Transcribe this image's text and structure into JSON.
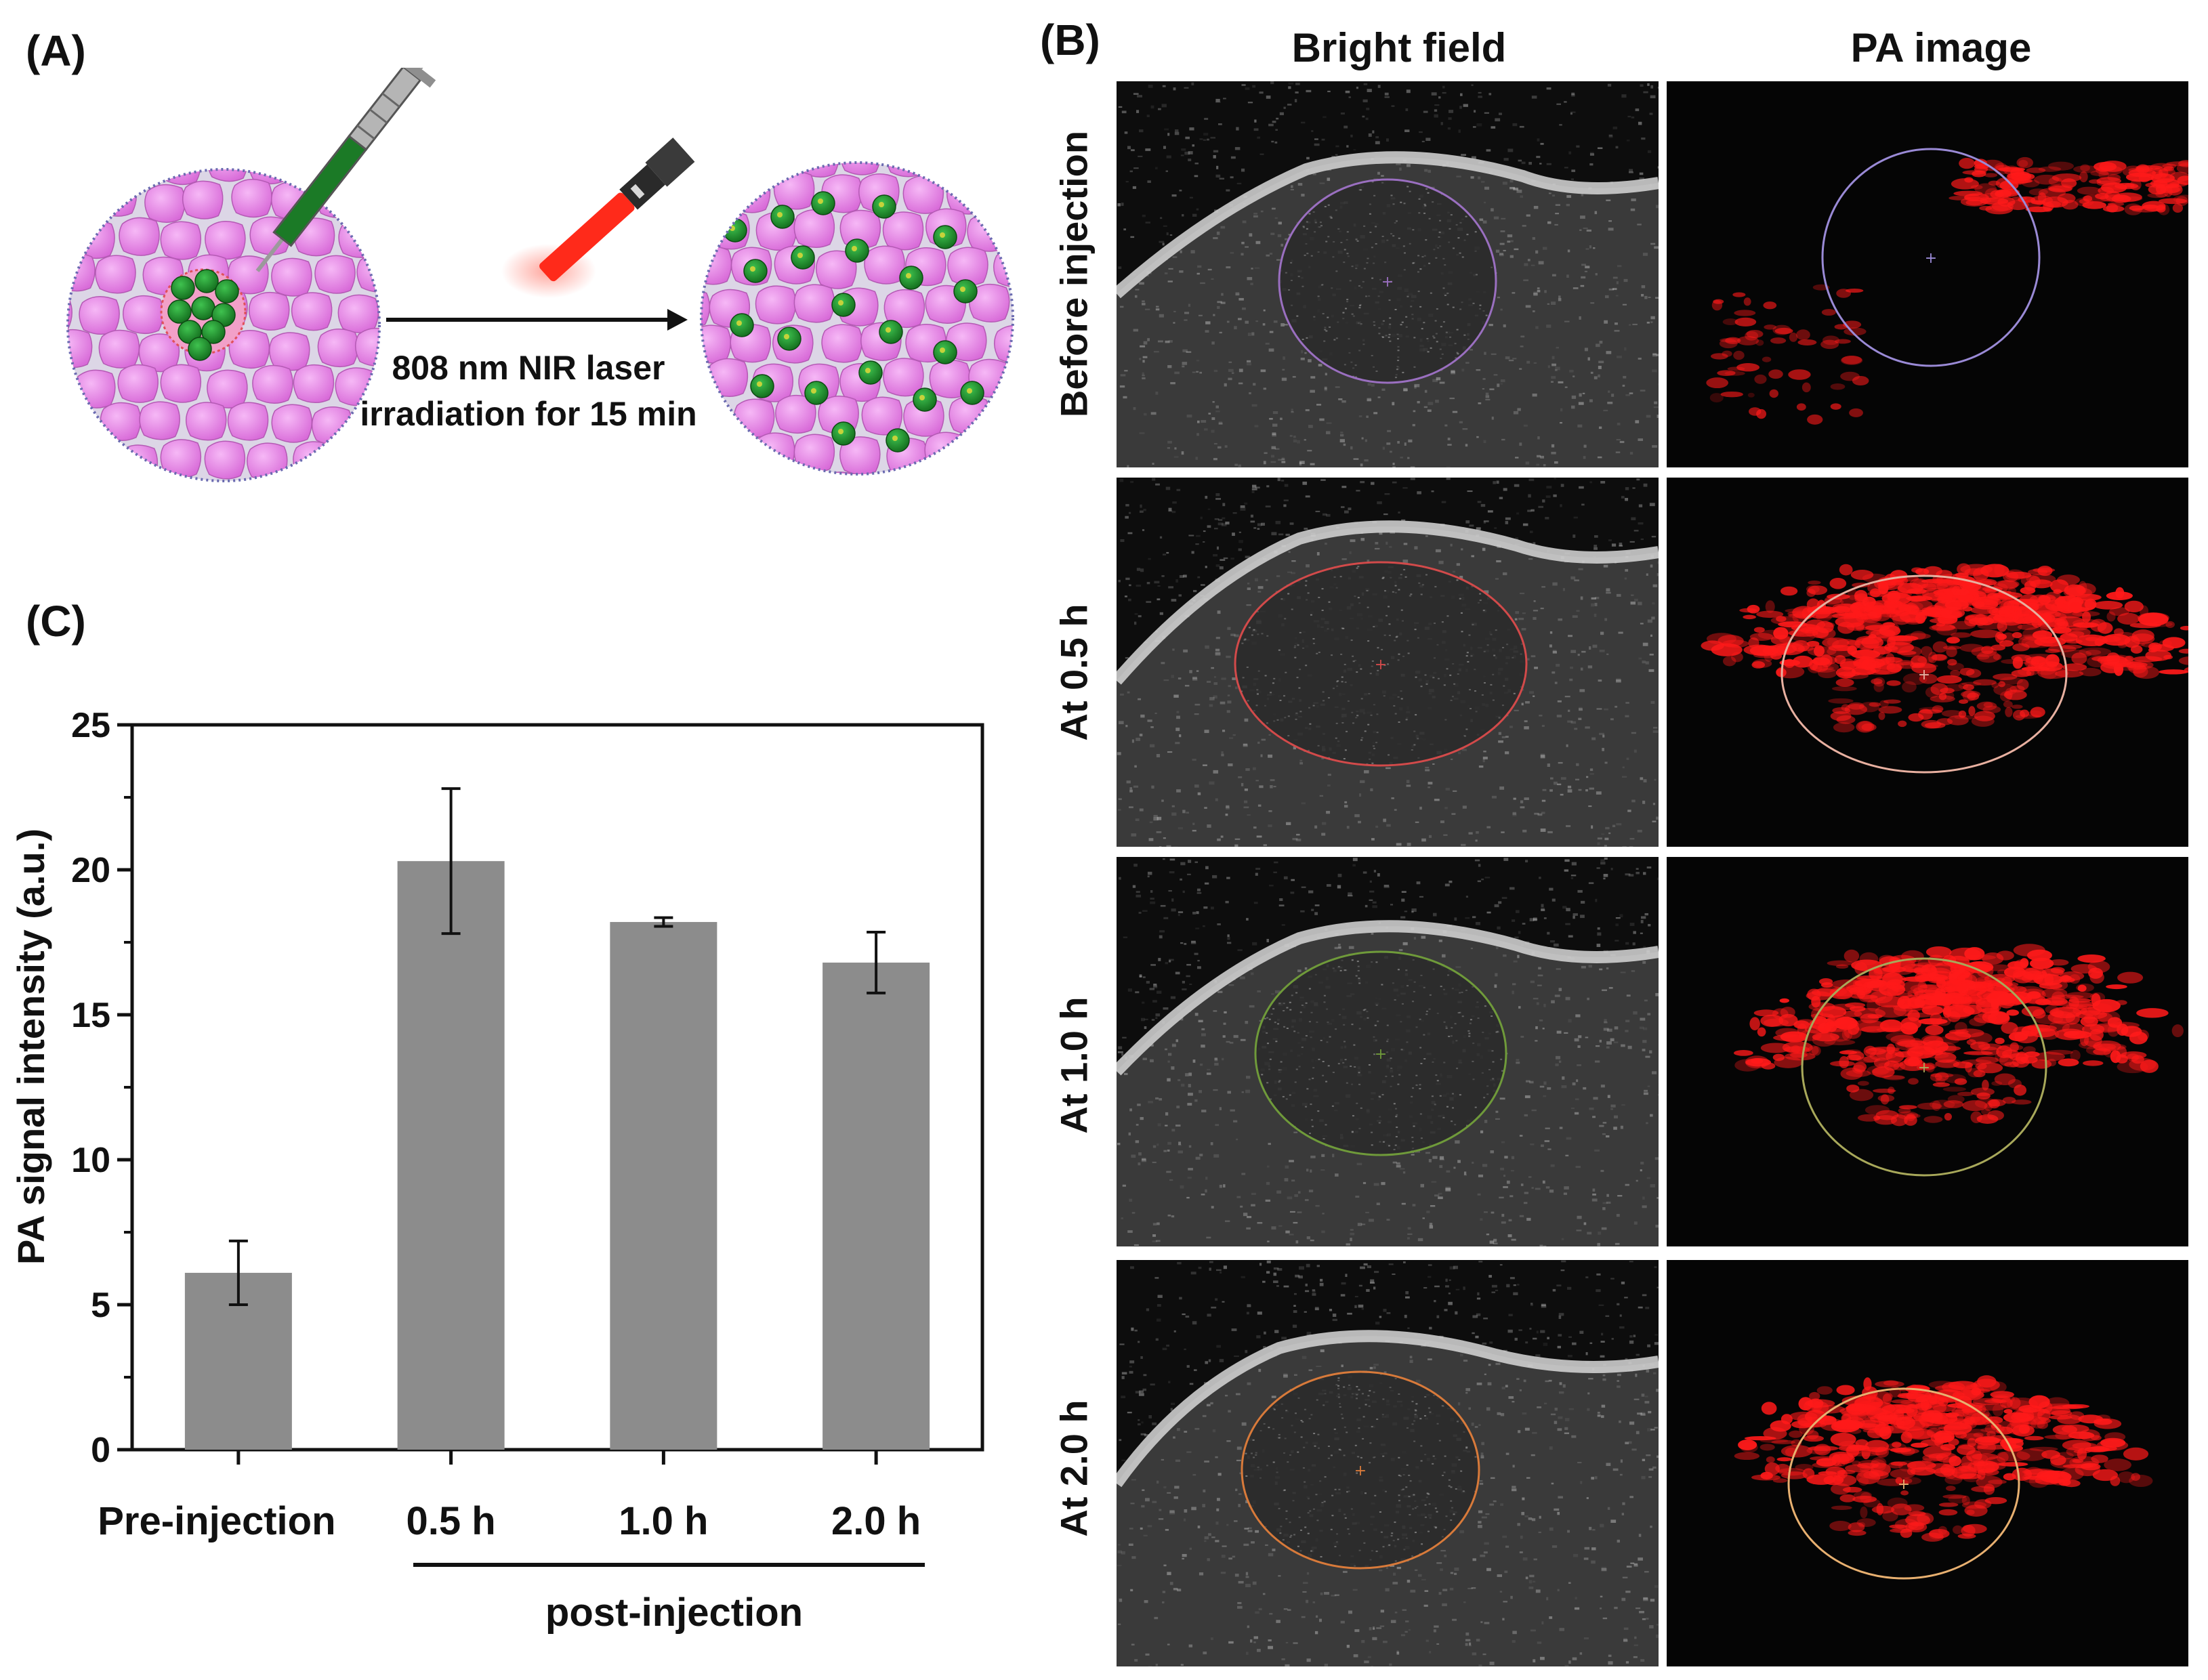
{
  "panels": {
    "a_label": "(A)",
    "b_label": "(B)",
    "c_label": "(C)"
  },
  "panel_a": {
    "laser_text_line1": "808 nm NIR laser",
    "laser_text_line2": "irradiation for 15 min",
    "colors": {
      "tissue": "#e98ee9",
      "nanoparticle": "#1f8a2c",
      "laser": "#ff2a1a",
      "syringe_body": "#1b7a26"
    }
  },
  "panel_b": {
    "column_headers": [
      "Bright field",
      "PA image"
    ],
    "row_labels": [
      "Before injection",
      "At 0.5 h",
      "At 1.0 h",
      "At 2.0 h"
    ],
    "roi_colors_bright": [
      "#9a6fc0",
      "#d24a4a",
      "#6f9a3a",
      "#d87a3a"
    ],
    "roi_colors_pa": [
      "#9a8ad6",
      "#e8b0a0",
      "#a8a85a",
      "#e8b070"
    ],
    "pa_signal_color": "#ff1a1a"
  },
  "chart_data": {
    "type": "bar",
    "categories": [
      "Pre-injection",
      "0.5 h",
      "1.0 h",
      "2.0 h"
    ],
    "values": [
      6.1,
      20.3,
      18.2,
      16.8
    ],
    "errors": [
      1.1,
      2.5,
      0.15,
      1.05
    ],
    "ylabel": "PA signal intensity (a.u.)",
    "ylim": [
      0,
      25
    ],
    "yticks": [
      "0",
      "5",
      "10",
      "15",
      "20",
      "25"
    ],
    "group_label": "post-injection",
    "bar_color": "#8c8c8c"
  }
}
